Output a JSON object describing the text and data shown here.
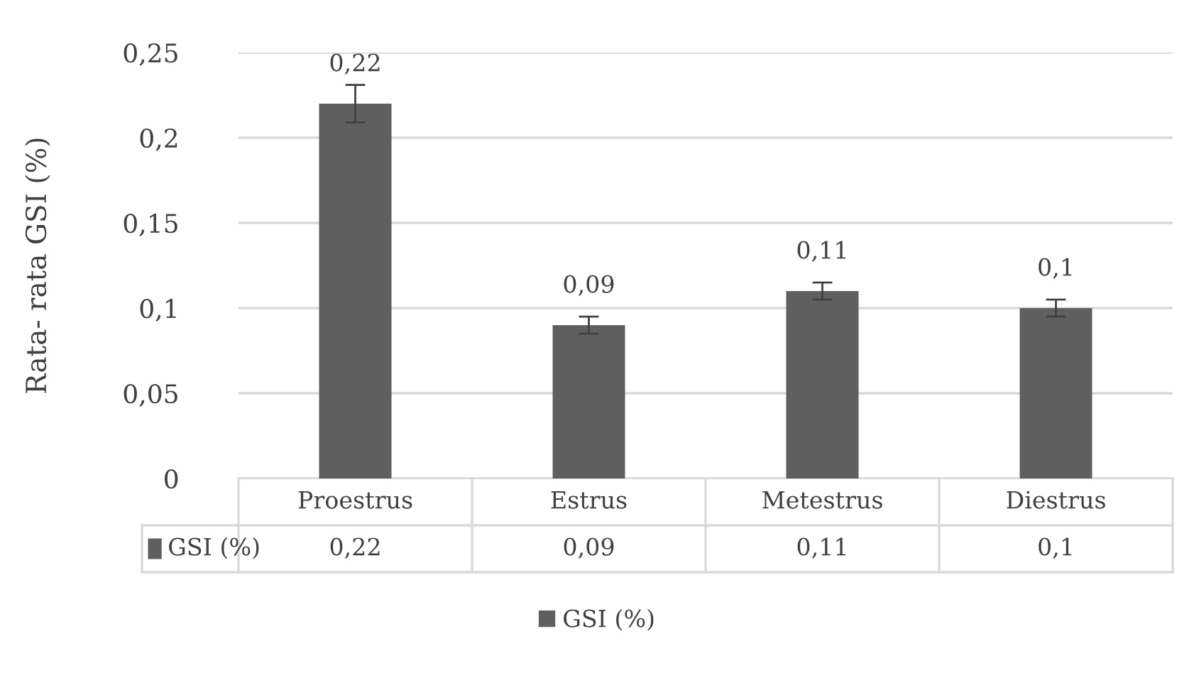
{
  "chart_data": {
    "type": "bar",
    "ylabel": "Rata- rata GSI (%)",
    "categories": [
      "Proestrus",
      "Estrus",
      "Metestrus",
      "Diestrus"
    ],
    "series": [
      {
        "name": "GSI (%)",
        "color": "#5f5f5f",
        "values": [
          0.22,
          0.09,
          0.11,
          0.1
        ],
        "value_labels": [
          "0,22",
          "0,09",
          "0,11",
          "0,1"
        ],
        "errors": [
          0.011,
          0.005,
          0.005,
          0.005
        ]
      }
    ],
    "ylim": [
      0,
      0.25
    ],
    "yticks": [
      0,
      {
        "value": 0.05,
        "label": "0,05"
      },
      {
        "value": 0.1,
        "label": "0,1"
      },
      {
        "value": 0.15,
        "label": "0,15"
      },
      {
        "value": 0.2,
        "label": "0,2"
      },
      {
        "value": 0.25,
        "label": "0,25"
      }
    ],
    "grid": "y",
    "legend": "bottom"
  }
}
